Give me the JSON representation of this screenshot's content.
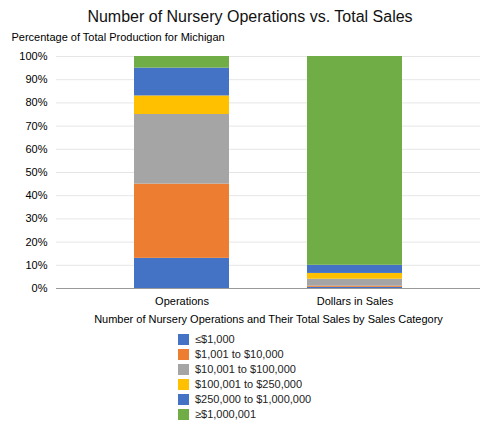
{
  "chart_data": {
    "type": "bar",
    "title": "Number of Nursery Operations vs. Total Sales",
    "xlabel": "Number of Nursery Operations and Their Total Sales by Sales Category",
    "ylabel": "Percentage of Total Production for Michigan",
    "categories": [
      "Operations",
      "Dollars in Sales"
    ],
    "series": [
      {
        "name": "≤$1,000",
        "color": "#4472C4",
        "values": [
          13.0,
          0.5
        ]
      },
      {
        "name": "$1,001 to $10,000",
        "color": "#ED7D31",
        "values": [
          32.0,
          0.5
        ]
      },
      {
        "name": "$10,001 to $100,000",
        "color": "#A5A5A5",
        "values": [
          30.0,
          3.0
        ]
      },
      {
        "name": "$100,001 to $250,000",
        "color": "#FFC000",
        "values": [
          8.0,
          2.5
        ]
      },
      {
        "name": "$250,000 to $1,000,000",
        "color": "#4472C4",
        "values": [
          12.0,
          3.5
        ]
      },
      {
        "name": "≥$1,000,001",
        "color": "#70AD47",
        "values": [
          5.0,
          90.0
        ]
      }
    ],
    "stacked": true,
    "ylim": [
      0,
      100
    ],
    "yticks": [
      {
        "value": 0,
        "label": "0%"
      },
      {
        "value": 10,
        "label": "10%"
      },
      {
        "value": 20,
        "label": "20%"
      },
      {
        "value": 30,
        "label": "30%"
      },
      {
        "value": 40,
        "label": "40%"
      },
      {
        "value": 50,
        "label": "50%"
      },
      {
        "value": 60,
        "label": "60%"
      },
      {
        "value": 70,
        "label": "70%"
      },
      {
        "value": 80,
        "label": "80%"
      },
      {
        "value": 90,
        "label": "90%"
      },
      {
        "value": 100,
        "label": "100%"
      }
    ],
    "grid": true,
    "legend": "bottom"
  }
}
